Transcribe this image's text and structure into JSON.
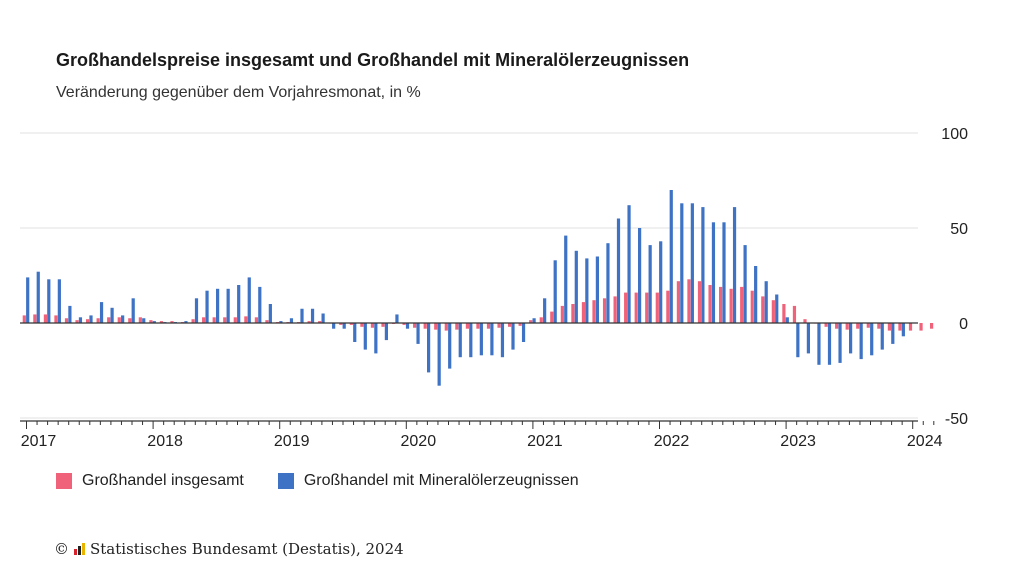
{
  "title": "Großhandelspreise insgesamt und Großhandel mit Mineralölerzeugnissen",
  "subtitle": "Veränderung gegenüber dem Vorjahresmonat, in %",
  "source": {
    "copyright_symbol": "©",
    "text": "Statistisches Bundesamt (Destatis), 2024"
  },
  "colors": {
    "series1": "#f0627a",
    "series2": "#3d72c4",
    "grid": "#e2e2e2",
    "axis": "#333333"
  },
  "chart_data": {
    "type": "bar",
    "x_start": "2017-01",
    "x_ticks": [
      "2017",
      "2018",
      "2019",
      "2020",
      "2021",
      "2022",
      "2023",
      "2024"
    ],
    "y_ticks": [
      100,
      50,
      0,
      -50
    ],
    "ylim": [
      -50,
      100
    ],
    "grid": true,
    "y_axis_side": "right",
    "legend_position": "bottom",
    "series": [
      {
        "name": "Großhandel insgesamt",
        "color": "#f0627a",
        "values": [
          4.0,
          4.5,
          4.5,
          4.0,
          2.5,
          1.5,
          2.0,
          2.5,
          3.0,
          3.0,
          2.5,
          3.0,
          1.5,
          1.0,
          1.0,
          0.5,
          2.0,
          3.0,
          3.0,
          3.0,
          3.0,
          3.5,
          3.0,
          1.5,
          0.5,
          0.5,
          0.5,
          1.0,
          1.0,
          0.0,
          -1.0,
          -1.0,
          -2.0,
          -2.5,
          -2.0,
          -0.5,
          -1.0,
          -2.5,
          -3.0,
          -3.5,
          -4.0,
          -3.5,
          -3.0,
          -3.0,
          -3.0,
          -2.5,
          -2.0,
          -1.5,
          1.5,
          3.0,
          6.0,
          9.0,
          10.0,
          11.0,
          12.0,
          13.0,
          14.0,
          16.0,
          16.0,
          16.0,
          16.0,
          17.0,
          22.0,
          23.0,
          22.0,
          20.0,
          19.0,
          18.0,
          19.0,
          17.0,
          14.0,
          12.0,
          10.0,
          9.0,
          2.0,
          0.0,
          -2.0,
          -3.0,
          -3.5,
          -3.0,
          -2.5,
          -3.0,
          -4.0,
          -4.0,
          -4.0,
          -4.0,
          -3.0
        ]
      },
      {
        "name": "Großhandel mit Mineralölerzeugnissen",
        "color": "#3d72c4",
        "values": [
          24.0,
          27.0,
          23.0,
          23.0,
          9.0,
          3.0,
          4.0,
          11.0,
          8.0,
          4.0,
          13.0,
          2.5,
          1.0,
          0.5,
          0.5,
          1.0,
          13.0,
          17.0,
          18.0,
          18.0,
          20.0,
          24.0,
          19.0,
          10.0,
          1.0,
          2.5,
          7.5,
          7.5,
          5.0,
          -3.0,
          -3.0,
          -10.0,
          -14.0,
          -16.0,
          -9.0,
          4.5,
          -3.0,
          -11.0,
          -26.0,
          -33.0,
          -24.0,
          -18.0,
          -18.0,
          -17.0,
          -17.0,
          -18.0,
          -14.0,
          -10.0,
          2.5,
          13.0,
          33.0,
          46.0,
          38.0,
          34.0,
          35.0,
          42.0,
          55.0,
          62.0,
          50.0,
          41.0,
          43.0,
          70.0,
          63.0,
          63.0,
          61.0,
          53.0,
          53.0,
          61.0,
          41.0,
          30.0,
          22.0,
          15.0,
          3.0,
          -18.0,
          -16.0,
          -22.0,
          -22.0,
          -21.0,
          -16.0,
          -19.0,
          -17.0,
          -14.0,
          -11.0,
          -7.0
        ]
      }
    ]
  }
}
